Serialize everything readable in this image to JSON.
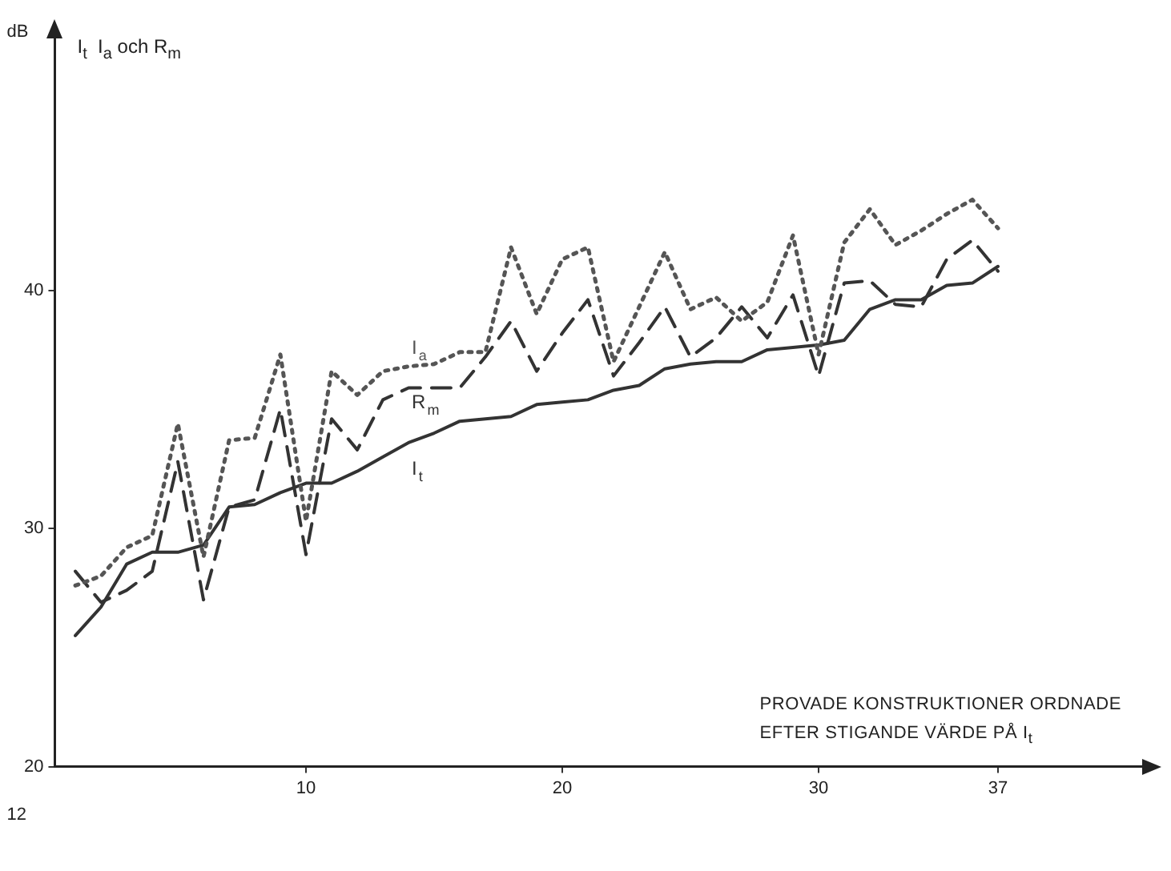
{
  "chart_data": {
    "type": "line",
    "title": "I$_{t}$  I$_{a}$ och R$_{m}$",
    "ylabel": "dB",
    "xlabel": "PROVADE KONSTRUKTIONER ORDNADE EFTER STIGANDE VÄRDE PÅ I$_{t}$",
    "annotations": [
      "12"
    ],
    "x": [
      1,
      2,
      3,
      4,
      5,
      6,
      7,
      8,
      9,
      10,
      11,
      12,
      13,
      14,
      15,
      16,
      17,
      18,
      19,
      20,
      21,
      22,
      23,
      24,
      25,
      26,
      27,
      28,
      29,
      30,
      31,
      32,
      33,
      34,
      35,
      36,
      37
    ],
    "series": [
      {
        "name": "I$_{a}$",
        "color": "#555555",
        "line_style": "dotted",
        "values": [
          27.6,
          28.0,
          29.2,
          29.7,
          34.4,
          28.8,
          33.7,
          33.8,
          37.3,
          30.3,
          36.6,
          35.6,
          36.6,
          36.8,
          36.9,
          37.4,
          37.4,
          41.8,
          39.0,
          41.3,
          41.8,
          37.0,
          39.3,
          41.6,
          39.2,
          39.7,
          38.7,
          39.5,
          42.3,
          37.3,
          42.0,
          43.4,
          41.9,
          42.5,
          43.2,
          43.8,
          42.6
        ]
      },
      {
        "name": "R$_{m}$",
        "color": "#333333",
        "line_style": "dashed",
        "values": [
          28.2,
          26.9,
          27.4,
          28.2,
          32.8,
          27.0,
          30.9,
          31.2,
          35.0,
          28.9,
          34.6,
          33.3,
          35.4,
          35.9,
          35.9,
          35.9,
          37.2,
          38.7,
          36.6,
          38.2,
          39.6,
          36.4,
          37.8,
          39.3,
          37.2,
          38.0,
          39.3,
          38.0,
          39.8,
          36.4,
          40.3,
          40.4,
          39.4,
          39.3,
          41.3,
          42.1,
          40.8
        ]
      },
      {
        "name": "I$_{t}$",
        "color": "#333333",
        "line_style": "solid",
        "values": [
          25.5,
          26.7,
          28.5,
          29.0,
          29.0,
          29.3,
          30.9,
          31.0,
          31.5,
          31.9,
          31.9,
          32.4,
          33.0,
          33.6,
          34.0,
          34.5,
          34.6,
          34.7,
          35.2,
          35.3,
          35.4,
          35.8,
          36.0,
          36.7,
          36.9,
          37.0,
          37.0,
          37.5,
          37.6,
          37.7,
          37.9,
          39.2,
          39.6,
          39.6,
          40.2,
          40.3,
          41.0
        ]
      }
    ],
    "xlim": [
      0.2,
      43
    ],
    "xticks": [
      10,
      20,
      30,
      37
    ],
    "ylim": [
      20,
      51
    ],
    "yticks": [
      20,
      30,
      40
    ],
    "grid": false
  }
}
